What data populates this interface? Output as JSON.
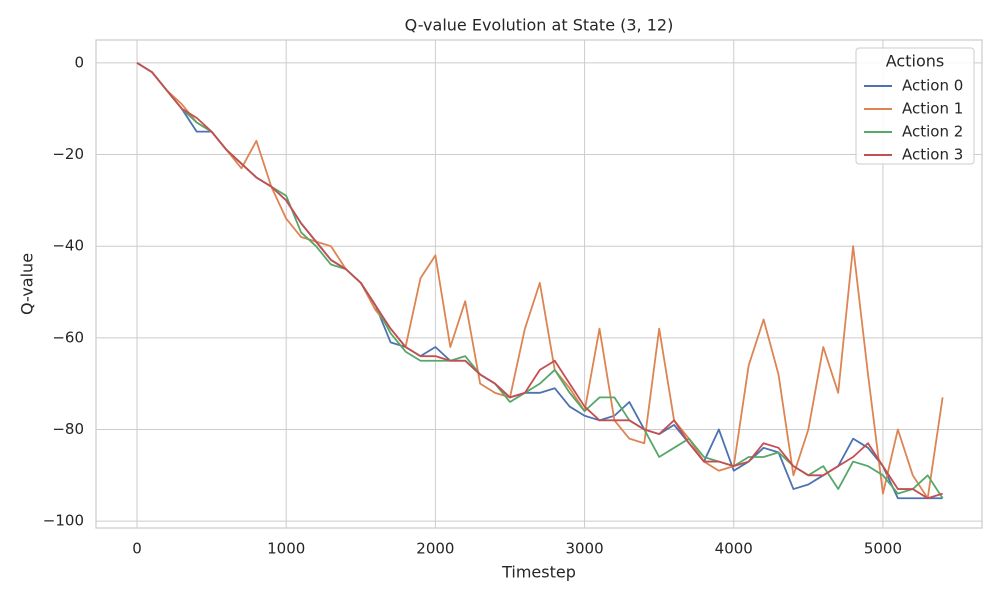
{
  "chart_data": {
    "type": "line",
    "title": "Q-value Evolution at State (3, 12)",
    "x_label": "Timestep",
    "y_label": "Q-value",
    "legend_title": "Actions",
    "legend_position": "upper right",
    "grid": true,
    "x": [
      0,
      100,
      200,
      300,
      400,
      500,
      600,
      700,
      800,
      900,
      1000,
      1100,
      1200,
      1300,
      1400,
      1500,
      1600,
      1700,
      1800,
      1900,
      2000,
      2100,
      2200,
      2300,
      2400,
      2500,
      2600,
      2700,
      2800,
      2900,
      3000,
      3100,
      3200,
      3300,
      3400,
      3500,
      3600,
      3700,
      3800,
      3900,
      4000,
      4100,
      4200,
      4300,
      4400,
      4500,
      4600,
      4700,
      4800,
      4900,
      5000,
      5100,
      5200,
      5300,
      5400
    ],
    "xlim": [
      -275,
      5664
    ],
    "ylim": [
      -101.5,
      5
    ],
    "xticks": [
      0,
      1000,
      2000,
      3000,
      4000,
      5000
    ],
    "yticks": [
      {
        "value": 0,
        "label": "0"
      },
      {
        "value": -20,
        "label": "−20"
      },
      {
        "value": -40,
        "label": "−40"
      },
      {
        "value": -60,
        "label": "−60"
      },
      {
        "value": -80,
        "label": "−80"
      },
      {
        "value": -100,
        "label": "−100"
      }
    ],
    "series": [
      {
        "name": "Action 0",
        "color": "#4c72b0",
        "values": [
          0,
          -2,
          -6,
          -10,
          -15,
          -15,
          -19,
          -22,
          -25,
          -27,
          -30,
          -35,
          -39,
          -43,
          -45,
          -48,
          -53,
          -61,
          -62,
          -64,
          -62,
          -65,
          -65,
          -68,
          -70,
          -73,
          -72,
          -72,
          -71,
          -75,
          -77,
          -78,
          -77,
          -74,
          -80,
          -81,
          -79,
          -83,
          -87,
          -80,
          -89,
          -87,
          -84,
          -85,
          -93,
          -92,
          -90,
          -88,
          -82,
          -84,
          -88,
          -95,
          -95,
          -95,
          -95
        ]
      },
      {
        "name": "Action 1",
        "color": "#dd8452",
        "values": [
          0,
          -2,
          -6,
          -9,
          -13,
          -15,
          -19,
          -23,
          -17,
          -27,
          -34,
          -38,
          -39,
          -40,
          -45,
          -48,
          -54,
          -58,
          -62,
          -47,
          -42,
          -62,
          -52,
          -70,
          -72,
          -73,
          -58,
          -48,
          -67,
          -71,
          -76,
          -58,
          -78,
          -82,
          -83,
          -58,
          -78,
          -82,
          -87,
          -89,
          -88,
          -66,
          -56,
          -68,
          -90,
          -80,
          -62,
          -72,
          -40,
          -68,
          -94,
          -80,
          -90,
          -95,
          -73
        ]
      },
      {
        "name": "Action 2",
        "color": "#55a868",
        "values": [
          0,
          -2,
          -6,
          -10,
          -13,
          -15,
          -19,
          -22,
          -25,
          -27,
          -29,
          -37,
          -40,
          -44,
          -45,
          -48,
          -53,
          -59,
          -63,
          -65,
          -65,
          -65,
          -64,
          -68,
          -70,
          -74,
          -72,
          -70,
          -67,
          -72,
          -76,
          -73,
          -73,
          -78,
          -80,
          -86,
          -84,
          -82,
          -86,
          -87,
          -88,
          -86,
          -86,
          -85,
          -88,
          -90,
          -88,
          -93,
          -87,
          -88,
          -90,
          -94,
          -93,
          -90,
          -95
        ]
      },
      {
        "name": "Action 3",
        "color": "#c44e52",
        "values": [
          0,
          -2,
          -6,
          -10,
          -12,
          -15,
          -19,
          -22,
          -25,
          -27,
          -30,
          -35,
          -39,
          -43,
          -45,
          -48,
          -53,
          -58,
          -62,
          -64,
          -64,
          -65,
          -65,
          -68,
          -70,
          -73,
          -72,
          -67,
          -65,
          -70,
          -75,
          -78,
          -78,
          -78,
          -80,
          -81,
          -78,
          -83,
          -87,
          -87,
          -88,
          -87,
          -83,
          -84,
          -88,
          -90,
          -90,
          -88,
          -86,
          -83,
          -88,
          -93,
          -93,
          -95,
          -94
        ]
      }
    ]
  }
}
